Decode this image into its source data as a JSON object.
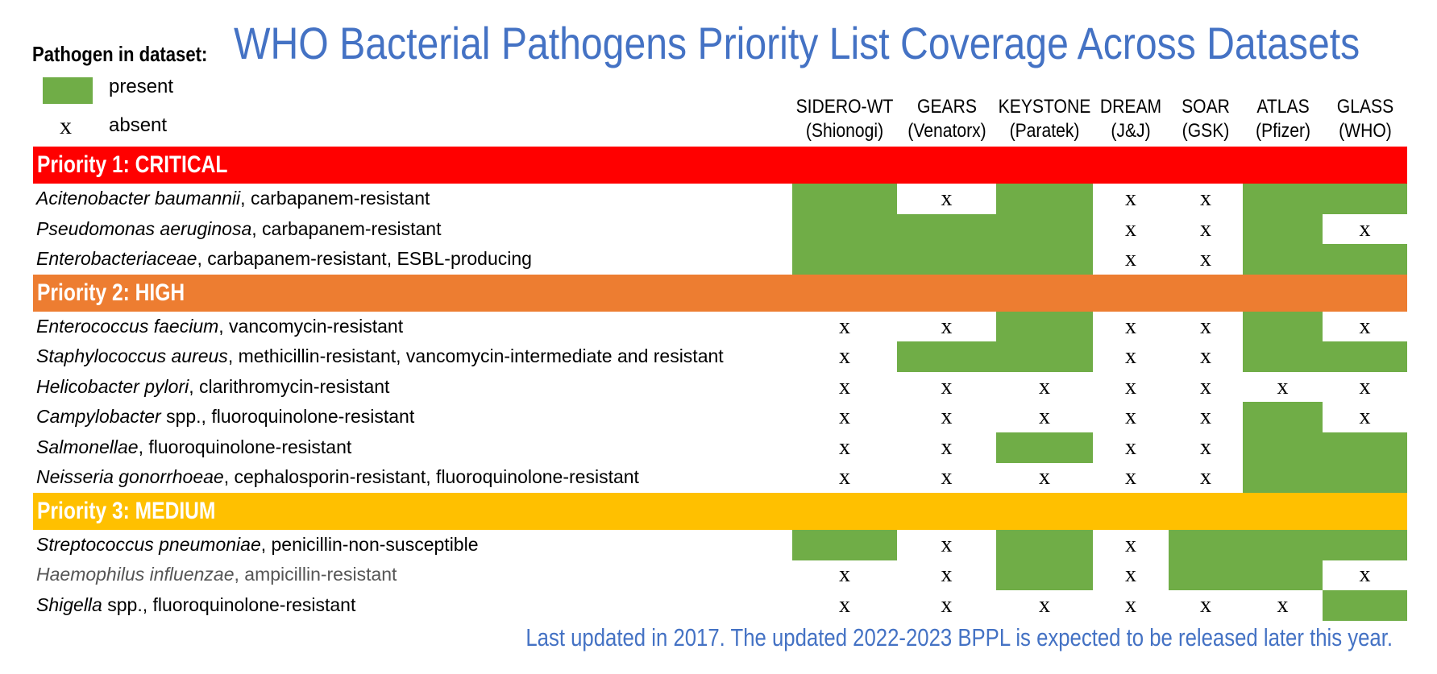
{
  "title": "WHO Bacterial Pathogens Priority List Coverage Across Datasets",
  "legend": {
    "title": "Pathogen in dataset:",
    "present_label": "present",
    "absent_symbol": "x",
    "absent_label": "absent"
  },
  "footer": "Last updated in 2017. The updated 2022-2023 BPPL is expected to be released later this year.",
  "colors": {
    "present": "#70ad47",
    "critical": "#ff0000",
    "high": "#ed7d31",
    "medium": "#ffc000",
    "title": "#4472c4"
  },
  "chart_data": {
    "type": "table",
    "columns": [
      {
        "name": "SIDERO-WT",
        "sub": "(Shionogi)"
      },
      {
        "name": "GEARS",
        "sub": "(Venatorx)"
      },
      {
        "name": "KEYSTONE",
        "sub": "(Paratek)"
      },
      {
        "name": "DREAM",
        "sub": "(J&J)"
      },
      {
        "name": "SOAR",
        "sub": "(GSK)"
      },
      {
        "name": "ATLAS",
        "sub": "(Pfizer)"
      },
      {
        "name": "GLASS",
        "sub": "(WHO)"
      }
    ],
    "cell_values": {
      "present": 1,
      "absent": 0
    },
    "sections": [
      {
        "label": "Priority 1: CRITICAL",
        "color_key": "critical",
        "rows": [
          {
            "species": "Acitenobacter baumannii",
            "detail": ", carbapanem-resistant",
            "values": [
              1,
              0,
              1,
              0,
              0,
              1,
              1
            ]
          },
          {
            "species": "Pseudomonas aeruginosa",
            "detail": ", carbapanem-resistant",
            "values": [
              1,
              1,
              1,
              0,
              0,
              1,
              0
            ]
          },
          {
            "species": "Enterobacteriaceae",
            "detail": ", carbapanem-resistant, ESBL-producing",
            "values": [
              1,
              1,
              1,
              0,
              0,
              1,
              1
            ]
          }
        ]
      },
      {
        "label": "Priority 2: HIGH",
        "color_key": "high",
        "rows": [
          {
            "species": "Enterococcus faecium",
            "detail": ", vancomycin-resistant",
            "values": [
              0,
              0,
              1,
              0,
              0,
              1,
              0
            ]
          },
          {
            "species": "Staphylococcus aureus",
            "detail": ", methicillin-resistant, vancomycin-intermediate and resistant",
            "values": [
              0,
              1,
              1,
              0,
              0,
              1,
              1
            ]
          },
          {
            "species": "Helicobacter pylori",
            "detail": ", clarithromycin-resistant",
            "values": [
              0,
              0,
              0,
              0,
              0,
              0,
              0
            ]
          },
          {
            "species": "Campylobacter",
            "detail": " spp., fluoroquinolone-resistant",
            "values": [
              0,
              0,
              0,
              0,
              0,
              1,
              0
            ]
          },
          {
            "species": "Salmonellae",
            "detail": ", fluoroquinolone-resistant",
            "values": [
              0,
              0,
              1,
              0,
              0,
              1,
              1
            ]
          },
          {
            "species": "Neisseria gonorrhoeae",
            "detail": ", cephalosporin-resistant, fluoroquinolone-resistant",
            "values": [
              0,
              0,
              0,
              0,
              0,
              1,
              1
            ]
          }
        ]
      },
      {
        "label": "Priority 3: MEDIUM",
        "color_key": "medium",
        "rows": [
          {
            "species": "Streptococcus pneumoniae",
            "detail": ", penicillin-non-susceptible",
            "values": [
              1,
              0,
              1,
              0,
              1,
              1,
              1
            ]
          },
          {
            "species": "Haemophilus influenzae",
            "detail": ", ampicillin-resistant",
            "values": [
              0,
              0,
              1,
              0,
              1,
              1,
              0
            ],
            "muted": true
          },
          {
            "species": "Shigella",
            "detail": " spp., fluoroquinolone-resistant",
            "values": [
              0,
              0,
              0,
              0,
              0,
              0,
              1
            ]
          }
        ]
      }
    ]
  }
}
